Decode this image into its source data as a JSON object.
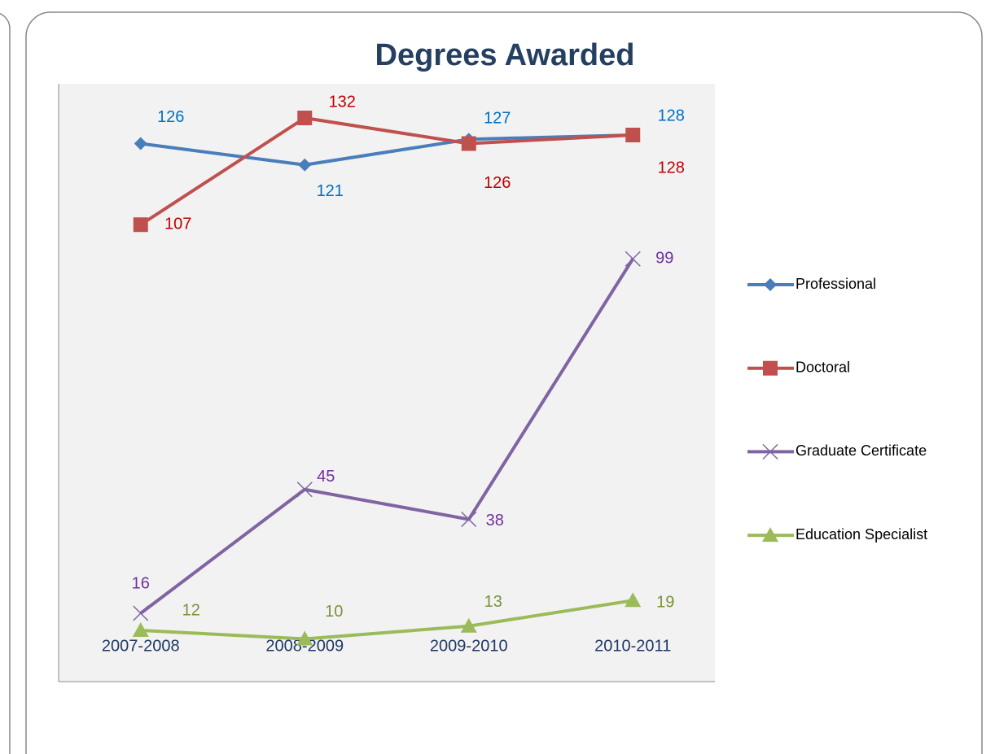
{
  "chart_data": {
    "type": "line",
    "title": "Degrees Awarded",
    "categories": [
      "2007-2008",
      "2008-2009",
      "2009-2010",
      "2010-2011"
    ],
    "ylim": [
      0,
      140
    ],
    "legend": "right",
    "series": [
      {
        "name": "Professional",
        "color": "#4a7ebb",
        "label_color": "#0070c0",
        "marker": "diamond",
        "values": [
          126,
          121,
          127,
          128
        ]
      },
      {
        "name": "Doctoral",
        "color": "#c0504d",
        "label_color": "#c00000",
        "marker": "square",
        "values": [
          107,
          132,
          126,
          128
        ]
      },
      {
        "name": "Graduate Certificate",
        "color": "#8064a2",
        "label_color": "#7030a0",
        "marker": "x",
        "values": [
          16,
          45,
          38,
          99
        ]
      },
      {
        "name": "Education Specialist",
        "color": "#9bbb59",
        "label_color": "#77933c",
        "marker": "triangle",
        "values": [
          12,
          10,
          13,
          19
        ]
      }
    ]
  }
}
